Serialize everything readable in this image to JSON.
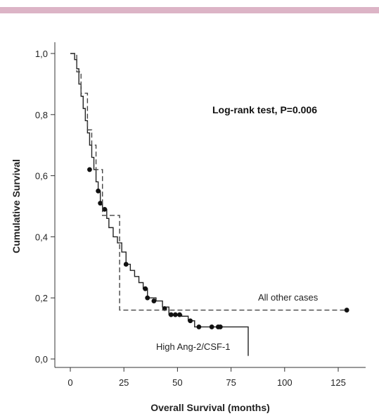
{
  "decor": {
    "top_bar_color": "#dcb4c6"
  },
  "chart_data": {
    "type": "line",
    "subtype": "kaplan-meier step curve",
    "title": "",
    "xlabel": "Overall Survival (months)",
    "ylabel": "Cumulative Survival",
    "xlim": [
      0,
      130
    ],
    "ylim": [
      0,
      1
    ],
    "x_ticks": [
      0,
      25,
      50,
      75,
      100,
      125
    ],
    "x_tick_labels": [
      "0",
      "25",
      "50",
      "75",
      "100",
      "125"
    ],
    "y_ticks": [
      0,
      0.2,
      0.4,
      0.6,
      0.8,
      1.0
    ],
    "y_tick_labels": [
      "0,0",
      "0,2",
      "0,4",
      "0,6",
      "0,8",
      "1,0"
    ],
    "grid": false,
    "legend": "none",
    "annotation": "Log-rank test, P=0.006",
    "series": [
      {
        "name": "High Ang-2/CSF-1",
        "style": "solid",
        "color": "#222222",
        "steps": [
          [
            0,
            1.0
          ],
          [
            2,
            0.98
          ],
          [
            3,
            0.95
          ],
          [
            4,
            0.9
          ],
          [
            5,
            0.86
          ],
          [
            6,
            0.82
          ],
          [
            7,
            0.78
          ],
          [
            8,
            0.74
          ],
          [
            9,
            0.7
          ],
          [
            10,
            0.66
          ],
          [
            11,
            0.62
          ],
          [
            12,
            0.58
          ],
          [
            13,
            0.55
          ],
          [
            14,
            0.51
          ],
          [
            15,
            0.49
          ],
          [
            17,
            0.46
          ],
          [
            18,
            0.43
          ],
          [
            20,
            0.4
          ],
          [
            22,
            0.38
          ],
          [
            24,
            0.35
          ],
          [
            26,
            0.31
          ],
          [
            28,
            0.29
          ],
          [
            30,
            0.27
          ],
          [
            32,
            0.25
          ],
          [
            34,
            0.23
          ],
          [
            36,
            0.2
          ],
          [
            40,
            0.19
          ],
          [
            43,
            0.17
          ],
          [
            46,
            0.145
          ],
          [
            52,
            0.14
          ],
          [
            55,
            0.125
          ],
          [
            58,
            0.105
          ],
          [
            83,
            0.01
          ]
        ],
        "end_x": 83,
        "censored": [
          [
            9,
            0.62
          ],
          [
            13,
            0.55
          ],
          [
            14,
            0.51
          ],
          [
            16,
            0.49
          ],
          [
            26,
            0.31
          ],
          [
            35,
            0.23
          ],
          [
            36,
            0.2
          ],
          [
            39,
            0.19
          ],
          [
            44,
            0.165
          ],
          [
            47,
            0.145
          ],
          [
            49,
            0.145
          ],
          [
            51,
            0.145
          ],
          [
            56,
            0.125
          ],
          [
            60,
            0.105
          ],
          [
            66,
            0.105
          ],
          [
            69,
            0.105
          ],
          [
            70,
            0.105
          ]
        ]
      },
      {
        "name": "All other cases",
        "style": "dashed",
        "color": "#444444",
        "steps": [
          [
            0,
            1.0
          ],
          [
            3,
            0.94
          ],
          [
            5,
            0.87
          ],
          [
            8,
            0.75
          ],
          [
            10,
            0.7
          ],
          [
            12,
            0.62
          ],
          [
            15,
            0.47
          ],
          [
            23,
            0.16
          ]
        ],
        "end_x": 129,
        "censored": [
          [
            129,
            0.16
          ]
        ]
      }
    ]
  }
}
